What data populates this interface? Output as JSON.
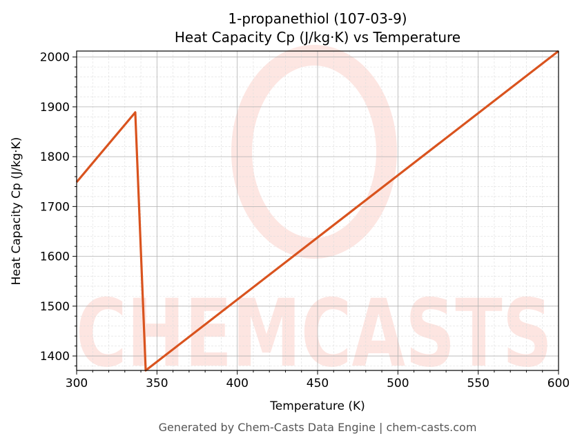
{
  "chart_data": {
    "type": "line",
    "title": "1-propanethiol (107-03-9)",
    "subtitle": "Heat Capacity Cp (J/kg·K) vs Temperature",
    "xlabel": "Temperature (K)",
    "ylabel": "Heat Capacity Cp (J/kg·K)",
    "xlim": [
      300,
      600
    ],
    "ylim": [
      1371,
      2012
    ],
    "xticks": [
      300,
      350,
      400,
      450,
      500,
      550,
      600
    ],
    "yticks": [
      1400,
      1500,
      1600,
      1700,
      1800,
      1900,
      2000
    ],
    "grid": true,
    "series": [
      {
        "name": "Cp",
        "color": "#d9531e",
        "x": [
          300,
          336.5,
          343,
          600
        ],
        "y": [
          1749,
          1889,
          1371,
          2012
        ]
      }
    ],
    "watermark": "CHEMCASTS",
    "footer": "Generated by Chem-Casts Data Engine | chem-casts.com"
  }
}
